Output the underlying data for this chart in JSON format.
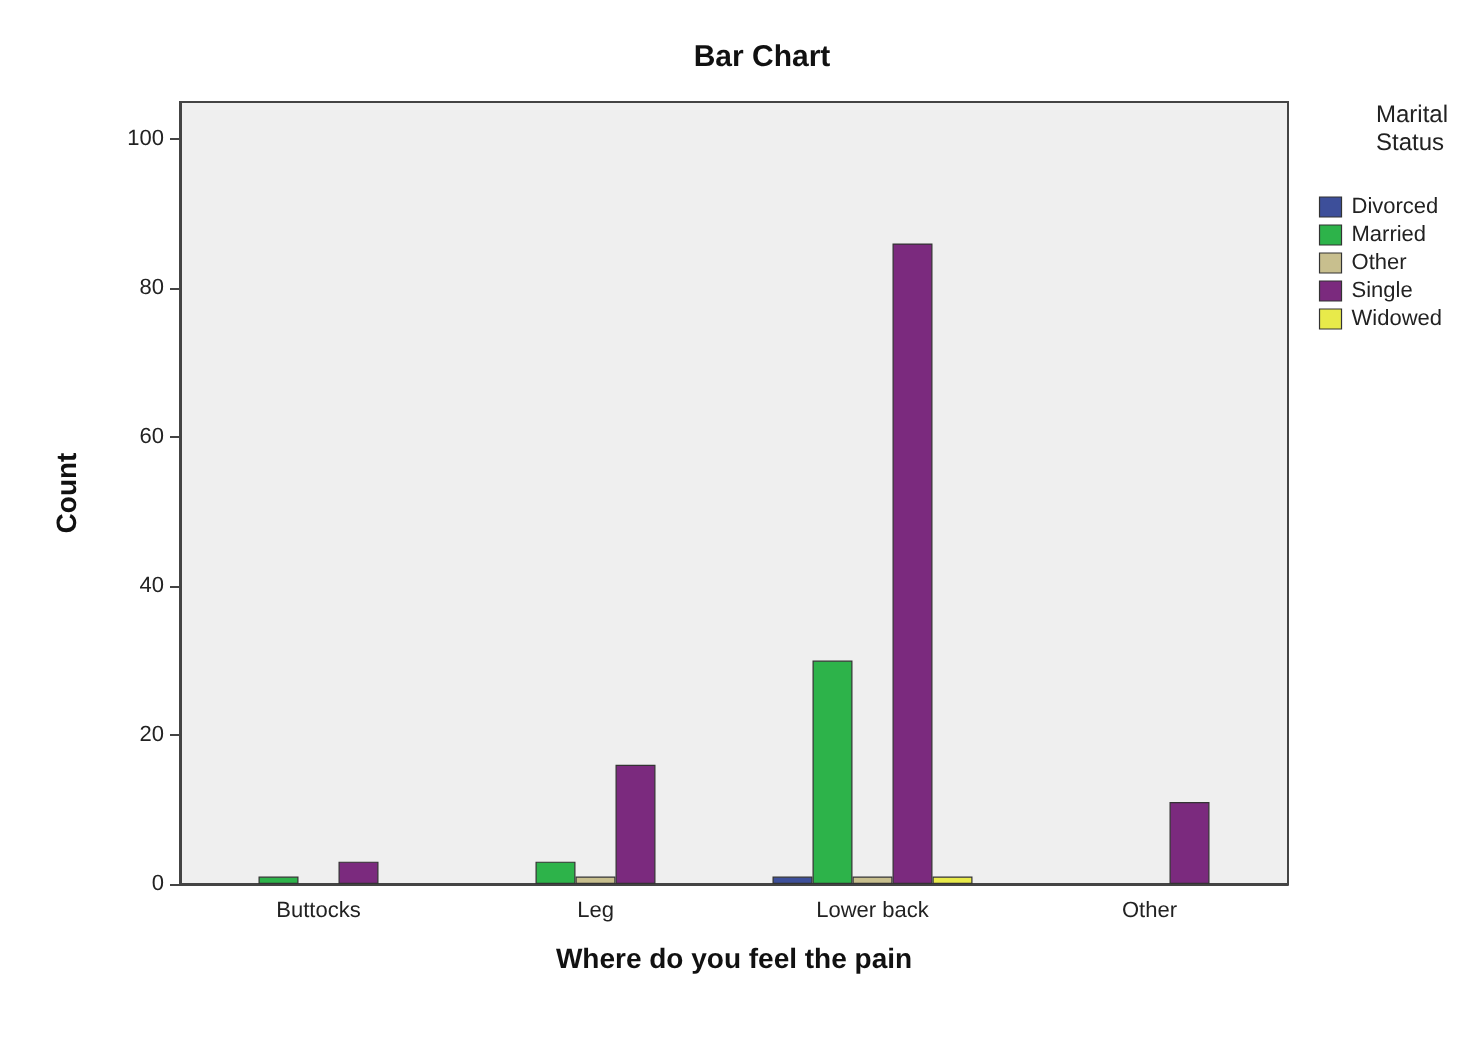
{
  "chart_data": {
    "type": "bar",
    "title": "Bar Chart",
    "xlabel": "Where do you feel the pain",
    "ylabel": "Count",
    "legend_title": "Marital Status",
    "categories": [
      "Buttocks",
      "Leg",
      "Lower back",
      "Other"
    ],
    "series": [
      {
        "name": "Divorced",
        "color": "#3d4f9a",
        "values": [
          null,
          null,
          1,
          null
        ]
      },
      {
        "name": "Married",
        "color": "#2db34a",
        "values": [
          1,
          3,
          30,
          null
        ]
      },
      {
        "name": "Other",
        "color": "#c8bf8e",
        "values": [
          null,
          1,
          1,
          null
        ]
      },
      {
        "name": "Single",
        "color": "#7b2a7e",
        "values": [
          3,
          16,
          86,
          11
        ]
      },
      {
        "name": "Widowed",
        "color": "#e8ea4a",
        "values": [
          null,
          null,
          1,
          null
        ]
      }
    ],
    "ylim": [
      0,
      105
    ],
    "yticks": [
      0,
      20,
      40,
      60,
      80,
      100
    ],
    "grid": false,
    "legend": "right"
  }
}
